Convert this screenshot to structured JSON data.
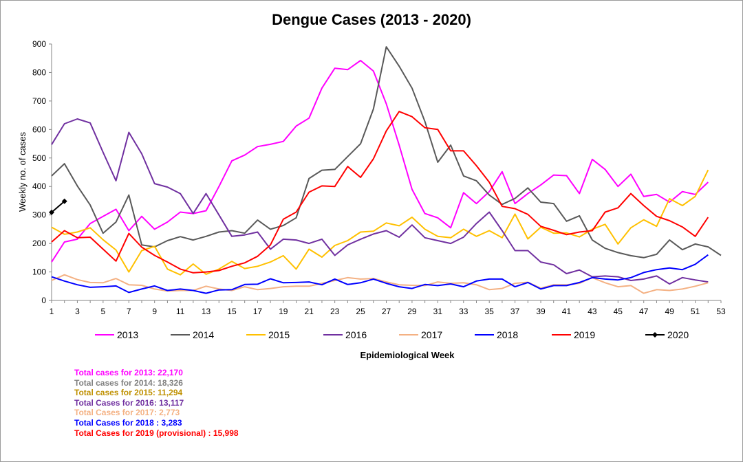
{
  "chart_data": {
    "type": "line",
    "title": "Dengue Cases (2013 - 2020)",
    "xlabel": "Epidemiological Week",
    "ylabel": "Weekly no. of cases",
    "xlim": [
      1,
      53
    ],
    "ylim": [
      0,
      900
    ],
    "x_ticks": [
      1,
      3,
      5,
      7,
      9,
      11,
      13,
      15,
      17,
      19,
      21,
      23,
      25,
      27,
      29,
      31,
      33,
      35,
      37,
      39,
      41,
      43,
      45,
      47,
      49,
      51,
      53
    ],
    "y_ticks": [
      0,
      100,
      200,
      300,
      400,
      500,
      600,
      700,
      800,
      900
    ],
    "grid": false,
    "legend": "bottom",
    "series": [
      {
        "name": "2013",
        "color": "#ff00ff",
        "values": [
          135,
          205,
          215,
          270,
          295,
          320,
          245,
          295,
          250,
          275,
          310,
          305,
          315,
          400,
          490,
          510,
          540,
          548,
          558,
          612,
          640,
          745,
          815,
          810,
          842,
          805,
          690,
          545,
          390,
          305,
          290,
          255,
          378,
          340,
          382,
          452,
          340,
          375,
          405,
          440,
          438,
          375,
          495,
          460,
          400,
          443,
          365,
          372,
          345,
          382,
          372,
          415
        ]
      },
      {
        "name": "2014",
        "color": "#595959",
        "values": [
          437,
          480,
          402,
          335,
          236,
          275,
          370,
          195,
          188,
          210,
          224,
          212,
          225,
          240,
          245,
          236,
          282,
          250,
          263,
          290,
          428,
          457,
          460,
          505,
          550,
          672,
          890,
          822,
          745,
          628,
          485,
          545,
          437,
          420,
          370,
          337,
          358,
          395,
          345,
          340,
          278,
          297,
          212,
          183,
          168,
          157,
          150,
          162,
          212,
          178,
          198,
          188,
          158
        ]
      },
      {
        "name": "2015",
        "color": "#ffc000",
        "values": [
          257,
          232,
          240,
          255,
          213,
          177,
          100,
          175,
          190,
          110,
          90,
          128,
          92,
          110,
          137,
          112,
          120,
          135,
          157,
          110,
          180,
          152,
          193,
          210,
          240,
          243,
          272,
          262,
          292,
          250,
          225,
          220,
          250,
          225,
          245,
          220,
          303,
          216,
          257,
          236,
          237,
          223,
          250,
          267,
          198,
          255,
          283,
          260,
          357,
          333,
          365,
          458
        ]
      },
      {
        "name": "2016",
        "color": "#7030a0",
        "values": [
          547,
          620,
          637,
          623,
          520,
          420,
          590,
          515,
          410,
          398,
          375,
          305,
          375,
          300,
          225,
          230,
          240,
          180,
          215,
          212,
          200,
          215,
          158,
          195,
          215,
          233,
          245,
          222,
          265,
          220,
          210,
          200,
          222,
          270,
          310,
          245,
          175,
          175,
          135,
          125,
          94,
          107,
          83,
          86,
          83,
          70,
          75,
          86,
          58,
          80,
          72,
          65
        ]
      },
      {
        "name": "2017",
        "color": "#f4b183",
        "values": [
          70,
          90,
          73,
          63,
          62,
          77,
          55,
          53,
          40,
          33,
          35,
          35,
          50,
          40,
          35,
          48,
          38,
          42,
          48,
          50,
          50,
          60,
          70,
          80,
          75,
          77,
          65,
          55,
          53,
          52,
          65,
          60,
          62,
          55,
          38,
          42,
          60,
          64,
          43,
          55,
          55,
          60,
          80,
          62,
          48,
          52,
          25,
          38,
          35,
          40,
          50,
          62
        ]
      },
      {
        "name": "2018",
        "color": "#0000ff",
        "values": [
          83,
          68,
          55,
          46,
          48,
          51,
          28,
          40,
          51,
          35,
          40,
          35,
          25,
          37,
          38,
          56,
          57,
          76,
          62,
          63,
          65,
          55,
          75,
          56,
          62,
          75,
          60,
          48,
          42,
          56,
          52,
          58,
          48,
          68,
          75,
          75,
          48,
          63,
          40,
          52,
          52,
          63,
          80,
          75,
          72,
          80,
          98,
          108,
          114,
          108,
          127,
          160
        ]
      },
      {
        "name": "2019",
        "color": "#ff0000",
        "values": [
          205,
          245,
          220,
          222,
          180,
          138,
          235,
          187,
          158,
          135,
          110,
          97,
          100,
          105,
          120,
          132,
          155,
          195,
          285,
          310,
          380,
          402,
          400,
          470,
          432,
          497,
          595,
          663,
          645,
          606,
          600,
          525,
          525,
          473,
          415,
          330,
          322,
          302,
          260,
          246,
          231,
          240,
          245,
          310,
          325,
          375,
          333,
          295,
          280,
          258,
          225,
          292
        ]
      },
      {
        "name": "2020",
        "color": "#000000",
        "marker": "diamond",
        "values": [
          309,
          348
        ]
      }
    ]
  },
  "totals": [
    {
      "text": "Total cases for 2013: 22,170",
      "color": "#ff00ff"
    },
    {
      "text": "Total cases for 2014: 18,326",
      "color": "#808080"
    },
    {
      "text": "Total cases for 2015: 11,294",
      "color": "#bf9000"
    },
    {
      "text": "Total Cases for 2016: 13,117",
      "color": "#7030a0"
    },
    {
      "text": "Total Cases for 2017: 2,773",
      "color": "#f4b183"
    },
    {
      "text": "Total Cases for 2018 : 3,283",
      "color": "#0000ff"
    },
    {
      "text": "Total Cases for 2019 (provisional) : 15,998",
      "color": "#ff0000"
    }
  ]
}
